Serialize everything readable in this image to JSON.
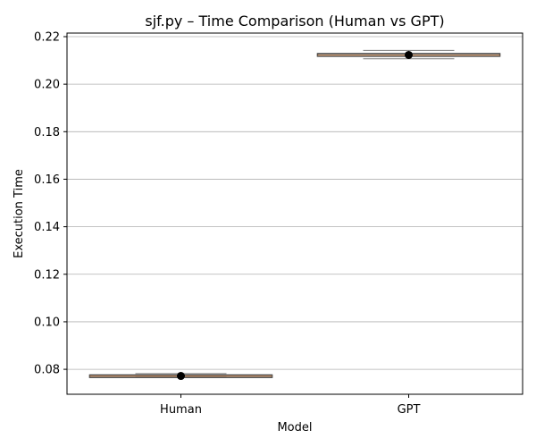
{
  "chart_data": {
    "type": "box",
    "title": "sjf.py – Time Comparison (Human vs GPT)",
    "xlabel": "Model",
    "ylabel": "Execution Time",
    "categories": [
      "Human",
      "GPT"
    ],
    "ylim": [
      0.0695,
      0.2215
    ],
    "yticks": [
      0.08,
      0.1,
      0.12,
      0.14,
      0.16,
      0.18,
      0.2,
      0.22
    ],
    "ytick_labels": [
      "0.08",
      "0.10",
      "0.12",
      "0.14",
      "0.16",
      "0.18",
      "0.20",
      "0.22"
    ],
    "grid": "horizontal",
    "boxes": [
      {
        "category": "Human",
        "whisker_low": 0.0769,
        "q1": 0.0769,
        "median": 0.0771,
        "q3": 0.0773,
        "whisker_high": 0.0782,
        "mean": 0.0772
      },
      {
        "category": "GPT",
        "whisker_low": 0.2107,
        "q1": 0.2118,
        "median": 0.2122,
        "q3": 0.2128,
        "whisker_high": 0.2142,
        "mean": 0.2123
      }
    ],
    "colors": {
      "box_edge": "#3f3f3f",
      "median": "#e8a36b",
      "whisker": "#7f7f7f",
      "mean_marker": "#000000",
      "grid": "#b0b0b0",
      "axis": "#000000"
    }
  }
}
